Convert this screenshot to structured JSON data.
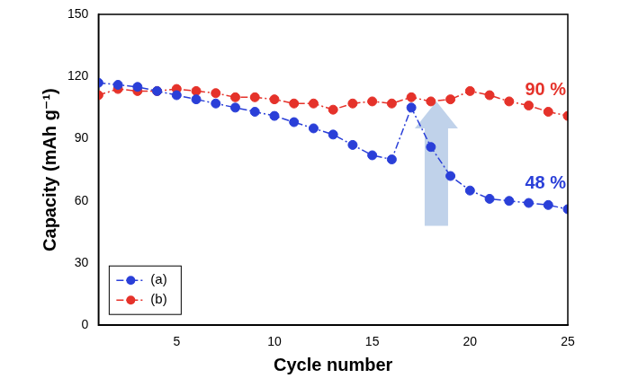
{
  "chart_data": {
    "type": "line",
    "x_label": "Cycle number",
    "y_label": "Capacity (mAh g⁻¹)",
    "x": [
      1,
      2,
      3,
      4,
      5,
      6,
      7,
      8,
      9,
      10,
      11,
      12,
      13,
      14,
      15,
      16,
      17,
      18,
      19,
      20,
      21,
      22,
      23,
      24,
      25
    ],
    "series": [
      {
        "name": "(a)",
        "color": "#2a3fd8",
        "marker": "circle",
        "line_style": "dashdot",
        "values": [
          117,
          116,
          115,
          113,
          111,
          109,
          107,
          105,
          103,
          101,
          98,
          95,
          92,
          87,
          82,
          80,
          105,
          86,
          72,
          65,
          61,
          60,
          59,
          58,
          56
        ]
      },
      {
        "name": "(b)",
        "color": "#e5322a",
        "marker": "circle",
        "line_style": "dashdot",
        "values": [
          111,
          114,
          113,
          113,
          114,
          113,
          112,
          110,
          110,
          109,
          107,
          107,
          104,
          107,
          108,
          107,
          110,
          108,
          109,
          113,
          111,
          108,
          106,
          103,
          101
        ]
      }
    ],
    "annotations": [
      {
        "text": "48 %",
        "series": "(a)"
      },
      {
        "text": "90 %",
        "series": "(b)"
      }
    ],
    "xlim": [
      1,
      25
    ],
    "xticks": [
      5,
      10,
      15,
      20,
      25
    ],
    "ylim": [
      0,
      150
    ],
    "yticks": [
      0,
      30,
      60,
      90,
      120,
      150
    ],
    "grid": false,
    "legend": "lower left"
  }
}
